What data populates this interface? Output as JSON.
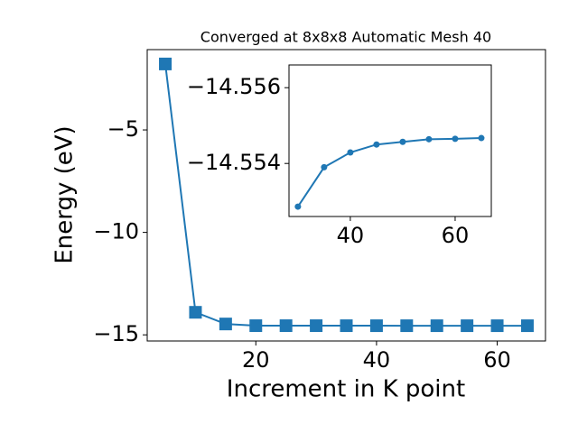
{
  "chart_data": [
    {
      "type": "line",
      "title": "Converged at 8x8x8 Automatic Mesh 40",
      "x_label": "Increment in K point",
      "y_label": "Energy (eV)",
      "x": [
        5,
        10,
        15,
        20,
        25,
        30,
        35,
        40,
        45,
        50,
        55,
        60,
        65
      ],
      "values": [
        -1.78,
        -13.9,
        -14.47,
        -14.553,
        -14.553,
        -14.55286,
        -14.5539,
        -14.55429,
        -14.5545,
        -14.55457,
        -14.55464,
        -14.55465,
        -14.55467
      ],
      "color": "#1f77b4",
      "marker": "square",
      "xlim": [
        2,
        68
      ],
      "ylim": [
        -15.3,
        -1.08
      ],
      "xticks": [
        20,
        40,
        60
      ],
      "yticks": [
        {
          "value": -15,
          "label": "−15"
        },
        {
          "value": -10,
          "label": "−10"
        },
        {
          "value": -5,
          "label": "−5"
        }
      ]
    },
    {
      "type": "line",
      "x": [
        30,
        35,
        40,
        45,
        50,
        55,
        60,
        65
      ],
      "values": [
        -14.55286,
        -14.5539,
        -14.55429,
        -14.5545,
        -14.55457,
        -14.55464,
        -14.55465,
        -14.55467
      ],
      "color": "#1f77b4",
      "marker": "circle",
      "xlim": [
        28.3,
        66.9
      ],
      "ylim": [
        -14.5526,
        -14.5566
      ],
      "xticks": [
        40,
        60
      ],
      "yticks": [
        {
          "value": -14.556,
          "label": "−14.556"
        },
        {
          "value": -14.554,
          "label": "−14.554"
        }
      ]
    }
  ]
}
